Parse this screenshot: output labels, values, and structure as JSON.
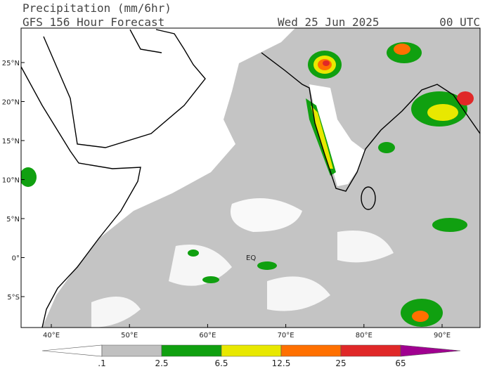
{
  "header": {
    "title": "Precipitation (mm/6hr)",
    "subtitle": "GFS 156 Hour Forecast",
    "date": "Wed 25 Jun 2025",
    "time": "00 UTC"
  },
  "map": {
    "lat_labels": [
      "25°N",
      "20°N",
      "15°N",
      "10°N",
      "5°N",
      "0°",
      "5°S"
    ],
    "lon_labels": [
      "40°E",
      "50°E",
      "60°E",
      "70°E",
      "80°E",
      "90°E"
    ],
    "equator_label": "EQ"
  },
  "colorbar": {
    "labels": [
      ".1",
      "2.5",
      "6.5",
      "12.5",
      "25",
      "65"
    ],
    "colors": [
      "#ffffff",
      "#c0c0c0",
      "#10a010",
      "#e8e800",
      "#ff7000",
      "#e02828",
      "#a00090"
    ]
  }
}
